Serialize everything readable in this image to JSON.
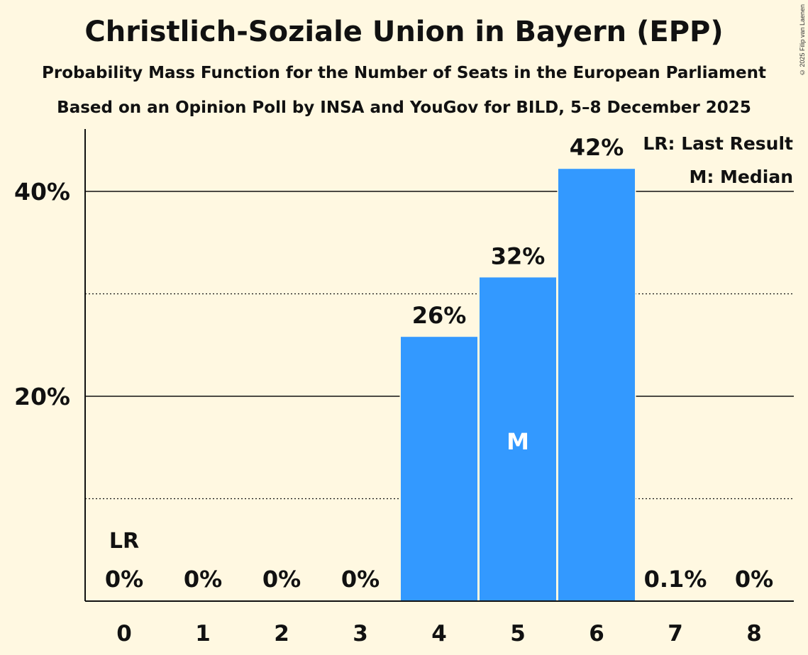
{
  "chart_data": {
    "type": "bar",
    "title": "Christlich-Soziale Union in Bayern (EPP)",
    "subtitle": "Probability Mass Function for the Number of Seats in the European Parliament",
    "source_line": "Based on an Opinion Poll by INSA and YouGov for BILD, 5–8 December 2025",
    "copyright": "© 2025 Filip van Laenen",
    "xlabel": "",
    "ylabel": "",
    "ylim": [
      0,
      46
    ],
    "grid": {
      "major": [
        20,
        40
      ],
      "minor": [
        10,
        30
      ]
    },
    "y_tick_labels": [
      {
        "value": 20,
        "label": "20%"
      },
      {
        "value": 40,
        "label": "40%"
      }
    ],
    "categories": [
      "0",
      "1",
      "2",
      "3",
      "4",
      "5",
      "6",
      "7",
      "8"
    ],
    "values": [
      0,
      0,
      0,
      0,
      25.8,
      31.6,
      42.2,
      0.1,
      0
    ],
    "data_labels": [
      "0%",
      "0%",
      "0%",
      "0%",
      "26%",
      "32%",
      "42%",
      "0.1%",
      "0%"
    ],
    "bar_color": "#3399ff",
    "background_color": "#fff8e1",
    "last_result": {
      "category": "0",
      "label": "LR"
    },
    "median": {
      "category": "5",
      "label": "M"
    },
    "legend": {
      "placement": "top-right",
      "items": [
        "LR: Last Result",
        "M: Median"
      ]
    }
  }
}
